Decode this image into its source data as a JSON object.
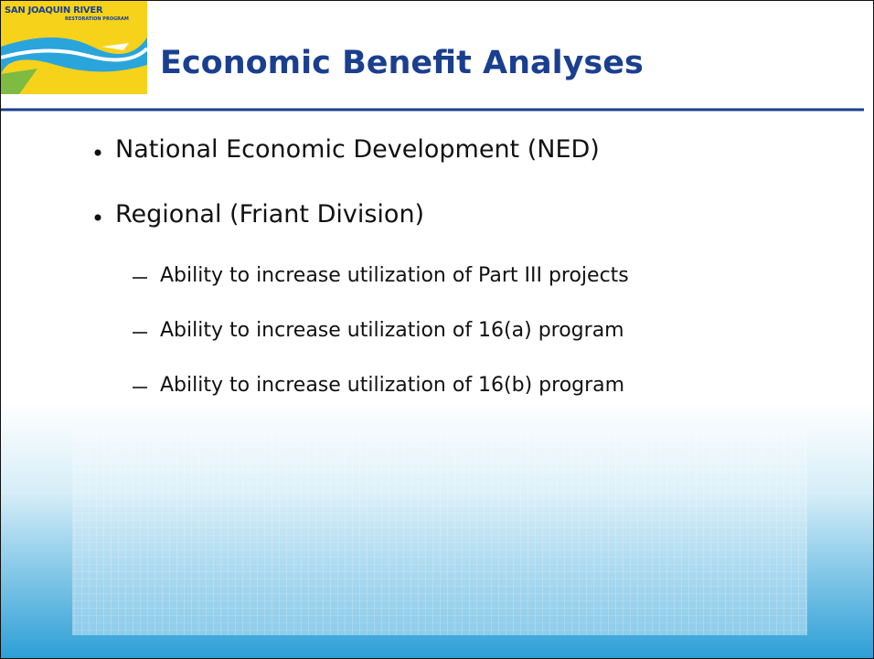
{
  "header": {
    "logo_title": "SAN JOAQUIN RIVER",
    "logo_subtitle": "RESTORATION PROGRAM",
    "title": "Economic Benefit Analyses"
  },
  "bullets": [
    {
      "text": "National Economic Development (NED)",
      "sub": []
    },
    {
      "text": "Regional (Friant Division)",
      "sub": [
        "Ability to increase utilization of Part III projects",
        "Ability to increase utilization of 16(a) program",
        "Ability to increase utilization of 16(b) program"
      ]
    }
  ]
}
